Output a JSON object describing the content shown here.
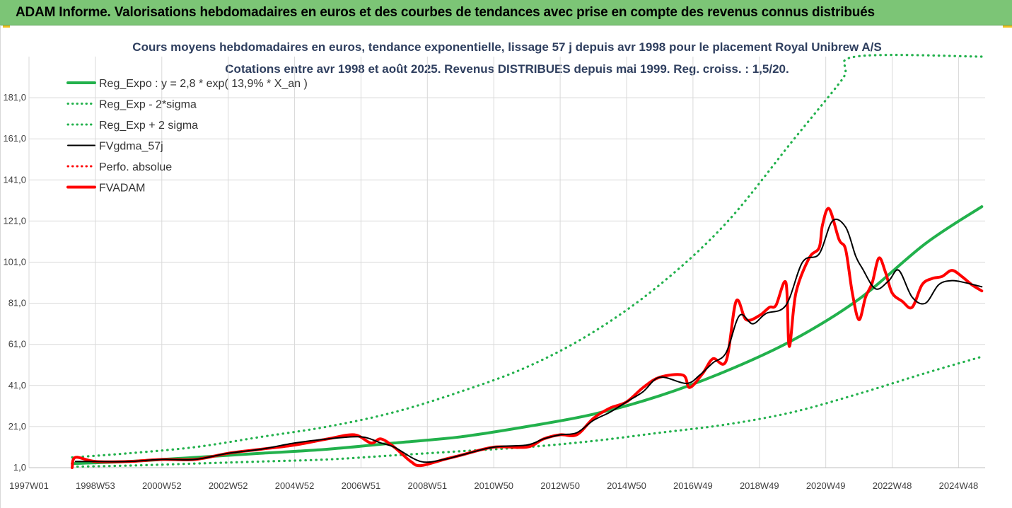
{
  "banner": {
    "title": "ADAM Informe. Valorisations hebdomadaires en euros et des courbes de tendances avec prise en compte des revenus connus distribués",
    "background": "#7cc576"
  },
  "chart_data": {
    "type": "line",
    "title": "Cours moyens hebdomadaires en euros, tendance exponentielle, lissage 57 j depuis avr 1998 pour le placement Royal Unibrew A/S",
    "subtitle": "Cotations entre avr 1998 et août 2025. Revenus DISTRIBUES depuis mai 1999. Reg. croiss. : 1,5/20.",
    "xlabel": "",
    "ylabel": "",
    "x_tick_labels": [
      "1997W01",
      "1998W53",
      "2000W52",
      "2002W52",
      "2004W52",
      "2006W51",
      "2008W51",
      "2010W50",
      "2012W50",
      "2014W50",
      "2016W49",
      "2018W49",
      "2020W49",
      "2022W48",
      "2024W48"
    ],
    "x_tick_years": [
      1997.0,
      1999.0,
      2001.0,
      2003.0,
      2005.0,
      2007.0,
      2009.0,
      2011.0,
      2013.0,
      2015.0,
      2017.0,
      2019.0,
      2021.0,
      2023.0,
      2025.0
    ],
    "xlim": [
      1997.0,
      2025.8
    ],
    "y_tick_labels": [
      "1,0",
      "21,0",
      "41,0",
      "61,0",
      "81,0",
      "101,0",
      "121,0",
      "141,0",
      "161,0",
      "181,0"
    ],
    "y_ticks": [
      1,
      21,
      41,
      61,
      81,
      101,
      121,
      141,
      161,
      181
    ],
    "ylim": [
      1,
      201
    ],
    "grid": true,
    "legend_position": "top-left",
    "series": [
      {
        "name": "Reg_Expo : y = 2,8 * exp( 13,9% *  X_an )",
        "color": "#22b14c",
        "style": "solid-thick",
        "x": [
          1998.3,
          2000,
          2002,
          2004,
          2006,
          2008,
          2010,
          2012,
          2014,
          2016,
          2018,
          2020,
          2022,
          2024,
          2025.7
        ],
        "y": [
          3,
          4,
          6,
          8,
          10,
          13,
          16,
          21,
          27,
          36,
          48,
          63,
          83,
          110,
          128
        ]
      },
      {
        "name": "Reg_Exp - 2*sigma",
        "color": "#22b14c",
        "style": "dotted",
        "x": [
          1998.3,
          2000,
          2002,
          2004,
          2006,
          2008,
          2010,
          2012,
          2014,
          2016,
          2018,
          2020,
          2022,
          2024,
          2025.7
        ],
        "y": [
          1.5,
          2,
          3,
          4,
          5,
          7,
          9,
          11,
          14,
          18,
          22,
          28,
          37,
          47,
          55
        ]
      },
      {
        "name": "Reg_Exp + 2 sigma",
        "color": "#22b14c",
        "style": "dotted",
        "x": [
          1998.3,
          2000,
          2002,
          2004,
          2006,
          2008,
          2010,
          2012,
          2014,
          2016,
          2018,
          2020,
          2021.5,
          2021.9,
          2025.7
        ],
        "y": [
          6,
          8,
          11,
          16,
          21,
          28,
          38,
          50,
          67,
          90,
          120,
          160,
          190,
          201,
          201
        ]
      },
      {
        "name": "FVgdma_57j",
        "color": "#000000",
        "style": "solid",
        "x": [
          1998.4,
          1999,
          2000,
          2001,
          2002,
          2003,
          2004,
          2005,
          2006,
          2007,
          2007.6,
          2008,
          2008.8,
          2009.5,
          2010,
          2011,
          2012,
          2012.5,
          2013,
          2013.5,
          2014,
          2014.5,
          2015,
          2015.5,
          2016,
          2016.8,
          2017.2,
          2017.6,
          2018,
          2018.4,
          2018.8,
          2019.2,
          2019.8,
          2020.3,
          2020.8,
          2021.2,
          2021.6,
          2021.9,
          2022.1,
          2022.5,
          2022.9,
          2023.2,
          2023.6,
          2024,
          2024.4,
          2024.8,
          2025.2,
          2025.7
        ],
        "y": [
          4,
          4,
          4,
          5,
          5,
          8,
          10,
          13,
          15,
          16,
          13,
          11,
          4,
          5,
          7,
          11,
          12,
          15,
          17,
          18,
          24,
          28,
          33,
          38,
          45,
          42,
          46,
          52,
          57,
          75,
          71,
          76,
          80,
          101,
          105,
          121,
          118,
          104,
          98,
          88,
          92,
          97,
          84,
          81,
          90,
          92,
          91,
          89
        ]
      },
      {
        "name": "Perfo. absolue",
        "color": "#ff0000",
        "style": "dotted",
        "x": [],
        "y": []
      },
      {
        "name": "FVADAM",
        "color": "#ff0000",
        "style": "solid-thick",
        "x": [
          1998.3,
          1998.4,
          1999,
          2000,
          2001,
          2002,
          2003,
          2004,
          2005,
          2006,
          2006.8,
          2007.3,
          2007.6,
          2008,
          2008.5,
          2008.8,
          2009.5,
          2010,
          2011,
          2012,
          2012.5,
          2013,
          2013.5,
          2014,
          2014.5,
          2015,
          2015.5,
          2016,
          2016.7,
          2016.9,
          2017.3,
          2017.6,
          2018,
          2018.3,
          2018.6,
          2019,
          2019.3,
          2019.5,
          2019.8,
          2019.9,
          2020.1,
          2020.5,
          2020.8,
          2020.9,
          2021.1,
          2021.4,
          2021.6,
          2021.8,
          2022.0,
          2022.2,
          2022.4,
          2022.6,
          2022.8,
          2023.0,
          2023.3,
          2023.6,
          2023.9,
          2024.2,
          2024.5,
          2024.8,
          2025.1,
          2025.4,
          2025.7
        ],
        "y": [
          1,
          6,
          4,
          4,
          5,
          5,
          8,
          10,
          12,
          15,
          17,
          13,
          15,
          11,
          4,
          2,
          5,
          7,
          11,
          11,
          15,
          17,
          17,
          25,
          30,
          33,
          40,
          45,
          46,
          40,
          47,
          54,
          53,
          82,
          73,
          75,
          79,
          80,
          91,
          60,
          86,
          103,
          108,
          119,
          127,
          112,
          107,
          86,
          73,
          84,
          91,
          103,
          96,
          86,
          82,
          79,
          90,
          93,
          94,
          97,
          94,
          90,
          87
        ]
      }
    ]
  }
}
